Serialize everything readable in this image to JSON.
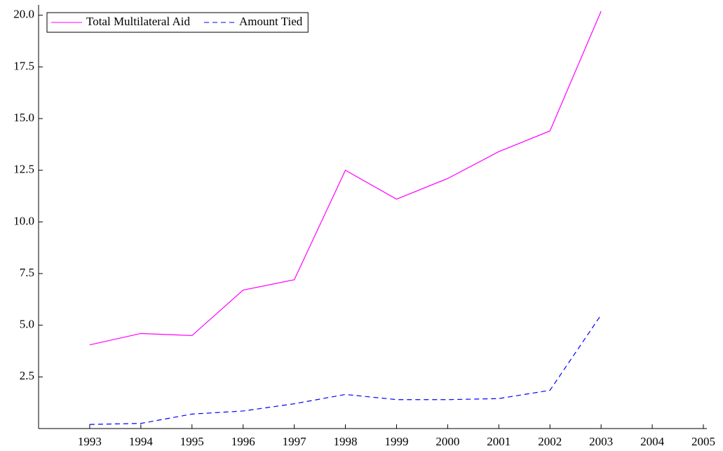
{
  "chart_data": {
    "type": "line",
    "x": [
      1993,
      1994,
      1995,
      1996,
      1997,
      1998,
      1999,
      2000,
      2001,
      2002,
      2003
    ],
    "series": [
      {
        "name": "Total Multilateral Aid",
        "color": "#ff00ff",
        "dash": false,
        "values": [
          4.05,
          4.6,
          4.5,
          6.7,
          7.2,
          12.5,
          11.1,
          12.1,
          13.4,
          14.4,
          20.2
        ]
      },
      {
        "name": "Amount Tied",
        "color": "#0000ff",
        "dash": true,
        "values": [
          0.2,
          0.25,
          0.7,
          0.85,
          1.2,
          1.65,
          1.4,
          1.4,
          1.45,
          1.85,
          5.5
        ]
      }
    ],
    "xlim": [
      1992,
      2005
    ],
    "ylim": [
      0,
      20.5
    ],
    "xticks": [
      1993,
      1994,
      1995,
      1996,
      1997,
      1998,
      1999,
      2000,
      2001,
      2002,
      2003,
      2004,
      2005
    ],
    "yticks": [
      2.5,
      {
        "value": 5,
        "label": "5.0"
      },
      7.5,
      {
        "value": 10,
        "label": "10.0"
      },
      12.5,
      {
        "value": 15,
        "label": "15.0"
      },
      17.5,
      {
        "value": 20,
        "label": "20.0"
      }
    ],
    "grid": false,
    "legend": "upper left"
  }
}
